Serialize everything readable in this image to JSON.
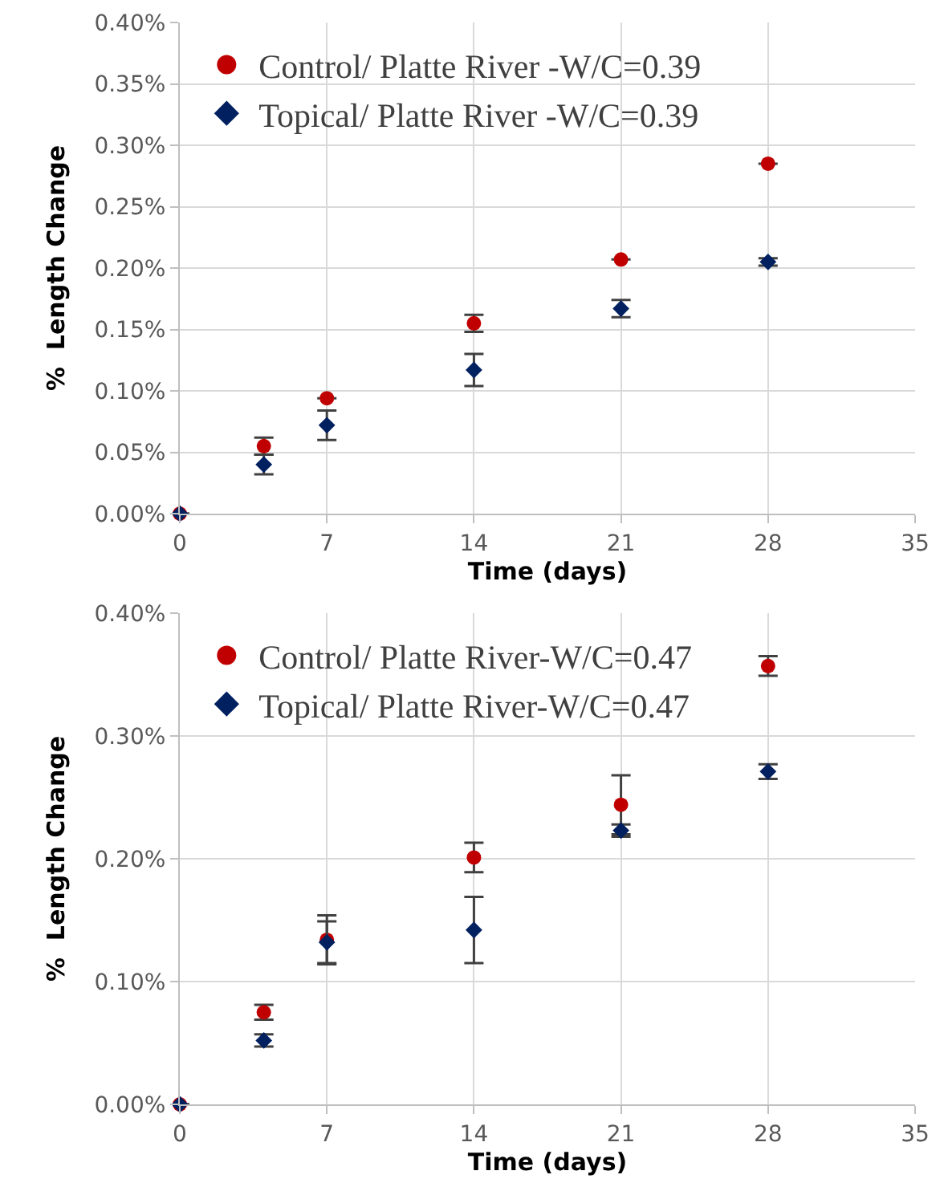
{
  "chart_data": [
    {
      "type": "scatter",
      "xlabel": "Time (days)",
      "ylabel": "%  Length Change",
      "x": [
        0,
        4,
        7,
        14,
        21,
        28
      ],
      "series": [
        {
          "name": "Control/ Platte River -W/C=0.39",
          "color": "#c00000",
          "marker": "circle",
          "values": [
            0,
            0.055,
            0.094,
            0.155,
            0.207,
            0.285
          ],
          "errors": [
            null,
            0.007,
            null,
            0.007,
            null,
            null
          ]
        },
        {
          "name": "Topical/ Platte River -W/C=0.39",
          "color": "#002060",
          "marker": "diamond",
          "values": [
            0,
            0.04,
            0.072,
            0.117,
            0.167,
            0.205
          ],
          "errors": [
            null,
            0.008,
            0.012,
            0.013,
            0.007,
            0.003
          ]
        }
      ],
      "xlim": [
        0,
        35
      ],
      "xticks": [
        0,
        7,
        14,
        21,
        28,
        35
      ],
      "ylim": [
        0,
        0.4
      ],
      "yticks": [
        {
          "value": 0,
          "label": "0.00%"
        },
        {
          "value": 0.05,
          "label": "0.05%"
        },
        {
          "value": 0.1,
          "label": "0.10%"
        },
        {
          "value": 0.15,
          "label": "0.15%"
        },
        {
          "value": 0.2,
          "label": "0.20%"
        },
        {
          "value": 0.25,
          "label": "0.25%"
        },
        {
          "value": 0.3,
          "label": "0.30%"
        },
        {
          "value": 0.35,
          "label": "0.35%"
        },
        {
          "value": 0.4,
          "label": "0.40%"
        }
      ],
      "grid": true,
      "legend": "top left"
    },
    {
      "type": "scatter",
      "xlabel": "Time (days)",
      "ylabel": "%  Length Change",
      "x": [
        0,
        4,
        7,
        14,
        21,
        28
      ],
      "series": [
        {
          "name": "Control/ Platte River-W/C=0.47",
          "color": "#c00000",
          "marker": "circle",
          "values": [
            0,
            0.075,
            0.134,
            0.201,
            0.244,
            0.357
          ],
          "errors": [
            null,
            0.006,
            0.02,
            0.012,
            0.024,
            0.008
          ]
        },
        {
          "name": "Topical/ Platte River-W/C=0.47",
          "color": "#002060",
          "marker": "diamond",
          "values": [
            0,
            0.052,
            0.132,
            0.142,
            0.223,
            0.271
          ],
          "errors": [
            null,
            0.005,
            0.017,
            0.027,
            0.005,
            0.006
          ]
        }
      ],
      "xlim": [
        0,
        35
      ],
      "xticks": [
        0,
        7,
        14,
        21,
        28,
        35
      ],
      "ylim": [
        0,
        0.4
      ],
      "yticks": [
        {
          "value": 0,
          "label": "0.00%"
        },
        {
          "value": 0.1,
          "label": "0.10%"
        },
        {
          "value": 0.2,
          "label": "0.20%"
        },
        {
          "value": 0.3,
          "label": "0.30%"
        },
        {
          "value": 0.4,
          "label": "0.40%"
        }
      ],
      "grid": true,
      "legend": "top left"
    }
  ]
}
